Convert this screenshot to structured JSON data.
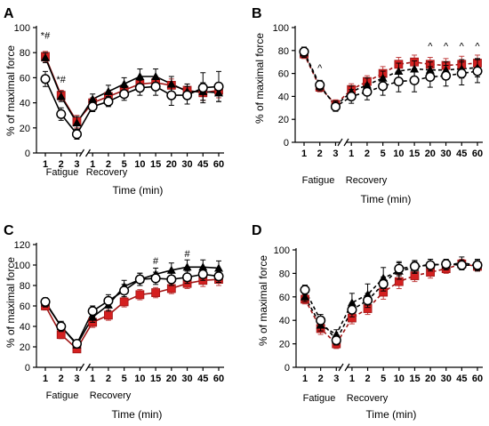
{
  "colors": {
    "red": "#d42020",
    "red_edge": "#a01515",
    "red_error": "#c04040",
    "black": "#000000",
    "white_marker": "#ffffff"
  },
  "chart_data": [
    {
      "type": "line",
      "panel_label": "A",
      "ylabel": "% of maximal force",
      "xlabel": "Time (min)",
      "ylim": [
        0,
        100
      ],
      "yticks": [
        "0",
        "20",
        "40",
        "60",
        "80",
        "100"
      ],
      "categories": [
        "1",
        "2",
        "3",
        "1",
        "2",
        "5",
        "10",
        "15",
        "20",
        "30",
        "45",
        "60"
      ],
      "axis_break_between": [
        2,
        3
      ],
      "phase_labels": [
        "Fatigue",
        "Recovery"
      ],
      "line_style": "solid",
      "series": [
        {
          "marker": "square-red",
          "values": [
            77,
            46,
            25,
            40,
            45,
            50,
            55,
            56,
            54,
            50,
            48,
            50
          ],
          "errors": [
            4,
            4,
            5,
            4,
            4,
            4,
            4,
            5,
            5,
            5,
            6,
            6
          ]
        },
        {
          "marker": "triangle-black",
          "values": [
            76,
            45,
            24,
            43,
            49,
            55,
            61,
            61,
            55,
            49,
            49,
            48
          ],
          "errors": [
            4,
            4,
            5,
            4,
            5,
            5,
            6,
            6,
            6,
            6,
            7,
            7
          ]
        },
        {
          "marker": "circle-open",
          "values": [
            59,
            31,
            15,
            37,
            41,
            47,
            52,
            53,
            46,
            46,
            52,
            53
          ],
          "errors": [
            6,
            5,
            4,
            4,
            4,
            5,
            6,
            7,
            8,
            7,
            12,
            12
          ]
        }
      ],
      "annotations": [
        {
          "text": "*#",
          "category_index": 0,
          "y": 91
        },
        {
          "text": "*#",
          "category_index": 1,
          "y": 56
        }
      ]
    },
    {
      "type": "line",
      "panel_label": "B",
      "ylabel": "% of maximal force",
      "xlabel": "Time (min)",
      "ylim": [
        0,
        100
      ],
      "yticks": [
        "0",
        "20",
        "40",
        "60",
        "80",
        "100"
      ],
      "categories": [
        "1",
        "2",
        "3",
        "1",
        "2",
        "5",
        "10",
        "15",
        "20",
        "30",
        "45",
        "60"
      ],
      "axis_break_between": [
        2,
        3
      ],
      "phase_labels": [
        "Fatigue",
        "Recovery"
      ],
      "line_style": "dashed",
      "series": [
        {
          "marker": "square-red",
          "values": [
            77,
            48,
            33,
            46,
            53,
            60,
            68,
            70,
            68,
            67,
            68,
            69
          ],
          "errors": [
            4,
            4,
            4,
            5,
            5,
            6,
            6,
            6,
            6,
            6,
            7,
            7
          ]
        },
        {
          "marker": "triangle-black",
          "values": [
            78,
            49,
            32,
            44,
            50,
            56,
            62,
            64,
            63,
            63,
            64,
            65
          ],
          "errors": [
            4,
            4,
            4,
            5,
            6,
            6,
            7,
            7,
            7,
            7,
            8,
            8
          ]
        },
        {
          "marker": "circle-open",
          "values": [
            79,
            50,
            31,
            40,
            44,
            49,
            53,
            54,
            57,
            58,
            60,
            62
          ],
          "errors": [
            4,
            4,
            4,
            6,
            7,
            8,
            9,
            10,
            9,
            9,
            10,
            10
          ]
        }
      ],
      "annotations": [
        {
          "text": "^",
          "category_index": 1,
          "y": 62
        },
        {
          "text": "^",
          "category_index": 8,
          "y": 81
        },
        {
          "text": "^",
          "category_index": 9,
          "y": 81
        },
        {
          "text": "^",
          "category_index": 10,
          "y": 81
        },
        {
          "text": "^",
          "category_index": 11,
          "y": 81
        }
      ]
    },
    {
      "type": "line",
      "panel_label": "C",
      "ylabel": "% of maximal force",
      "xlabel": "Time (min)",
      "ylim": [
        0,
        120
      ],
      "yticks": [
        "0",
        "20",
        "40",
        "60",
        "80",
        "100",
        "120"
      ],
      "categories": [
        "1",
        "2",
        "3",
        "1",
        "2",
        "5",
        "10",
        "15",
        "20",
        "30",
        "45",
        "60"
      ],
      "axis_break_between": [
        2,
        3
      ],
      "phase_labels": [
        "Fatigue",
        "Recovery"
      ],
      "line_style": "solid",
      "series": [
        {
          "marker": "square-red",
          "values": [
            60,
            32,
            18,
            44,
            51,
            64,
            71,
            73,
            77,
            82,
            85,
            86
          ],
          "errors": [
            4,
            4,
            3,
            5,
            5,
            5,
            5,
            5,
            5,
            5,
            6,
            6
          ]
        },
        {
          "marker": "triangle-black",
          "values": [
            63,
            40,
            22,
            49,
            61,
            79,
            86,
            91,
            95,
            98,
            98,
            97
          ],
          "errors": [
            4,
            4,
            3,
            5,
            6,
            6,
            6,
            6,
            7,
            7,
            7,
            7
          ]
        },
        {
          "marker": "circle-open",
          "values": [
            64,
            40,
            23,
            55,
            65,
            75,
            86,
            87,
            86,
            88,
            91,
            89
          ],
          "errors": [
            4,
            5,
            3,
            5,
            6,
            6,
            6,
            6,
            6,
            6,
            6,
            6
          ]
        }
      ],
      "annotations": [
        {
          "text": "#",
          "category_index": 7,
          "y": 101
        },
        {
          "text": "#",
          "category_index": 9,
          "y": 108
        }
      ]
    },
    {
      "type": "line",
      "panel_label": "D",
      "ylabel": "% of maximal force",
      "xlabel": "Time (min)",
      "ylim": [
        0,
        100
      ],
      "yticks": [
        "0",
        "20",
        "40",
        "60",
        "80",
        "100"
      ],
      "categories": [
        "1",
        "2",
        "3",
        "1",
        "2",
        "5",
        "10",
        "15",
        "20",
        "30",
        "45",
        "60"
      ],
      "axis_break_between": [
        2,
        3
      ],
      "phase_labels": [
        "Fatigue",
        "Recovery"
      ],
      "line_style": "dashed",
      "series": [
        {
          "marker": "square-red",
          "values": [
            58,
            33,
            20,
            42,
            50,
            64,
            73,
            78,
            81,
            84,
            88,
            86
          ],
          "errors": [
            4,
            5,
            4,
            5,
            5,
            6,
            6,
            5,
            5,
            4,
            4,
            4
          ]
        },
        {
          "marker": "triangle-black",
          "values": [
            60,
            36,
            28,
            55,
            62,
            76,
            82,
            85,
            88,
            87,
            89,
            87
          ],
          "errors": [
            4,
            5,
            4,
            8,
            9,
            9,
            7,
            5,
            4,
            4,
            5,
            5
          ]
        },
        {
          "marker": "circle-open",
          "values": [
            66,
            40,
            23,
            49,
            57,
            71,
            84,
            86,
            87,
            88,
            87,
            87
          ],
          "errors": [
            4,
            5,
            4,
            6,
            6,
            6,
            6,
            5,
            5,
            4,
            4,
            4
          ]
        }
      ],
      "annotations": []
    }
  ]
}
